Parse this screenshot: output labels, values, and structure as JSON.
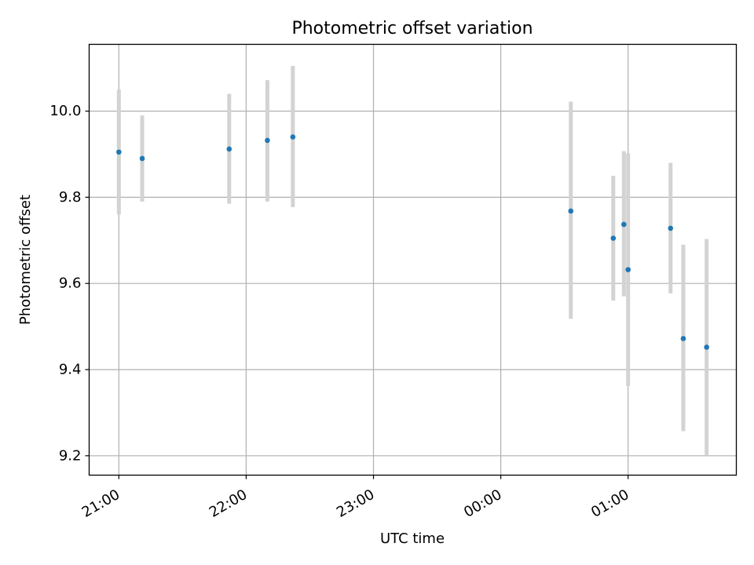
{
  "chart_data": {
    "type": "scatter",
    "title": "Photometric offset variation",
    "xlabel": "UTC time",
    "ylabel": "Photometric offset",
    "xlim": [
      "20:46",
      "01:51"
    ],
    "ylim": [
      9.155,
      10.155
    ],
    "grid": true,
    "x_ticks": [
      "21:00",
      "22:00",
      "23:00",
      "00:00",
      "01:00"
    ],
    "y_ticks": [
      "9.2",
      "9.4",
      "9.6",
      "9.8",
      "10.0"
    ],
    "point_color": "#1f77b4",
    "errorbar_color": "#d3d3d3",
    "series": [
      {
        "points": [
          {
            "x": "21:00",
            "y": 9.905,
            "ylow": 9.76,
            "yhigh": 10.05
          },
          {
            "x": "21:11",
            "y": 9.89,
            "ylow": 9.79,
            "yhigh": 9.99
          },
          {
            "x": "21:52",
            "y": 9.912,
            "ylow": 9.785,
            "yhigh": 10.04
          },
          {
            "x": "22:10",
            "y": 9.932,
            "ylow": 9.79,
            "yhigh": 10.072
          },
          {
            "x": "22:22",
            "y": 9.94,
            "ylow": 9.777,
            "yhigh": 10.105
          },
          {
            "x": "00:33",
            "y": 9.768,
            "ylow": 9.518,
            "yhigh": 10.022
          },
          {
            "x": "00:53",
            "y": 9.705,
            "ylow": 9.56,
            "yhigh": 9.85
          },
          {
            "x": "00:58",
            "y": 9.737,
            "ylow": 9.57,
            "yhigh": 9.907
          },
          {
            "x": "01:00",
            "y": 9.632,
            "ylow": 9.362,
            "yhigh": 9.902
          },
          {
            "x": "01:20",
            "y": 9.728,
            "ylow": 9.577,
            "yhigh": 9.88
          },
          {
            "x": "01:26",
            "y": 9.472,
            "ylow": 9.257,
            "yhigh": 9.69
          },
          {
            "x": "01:37",
            "y": 9.452,
            "ylow": 9.2,
            "yhigh": 9.703
          }
        ]
      }
    ]
  }
}
